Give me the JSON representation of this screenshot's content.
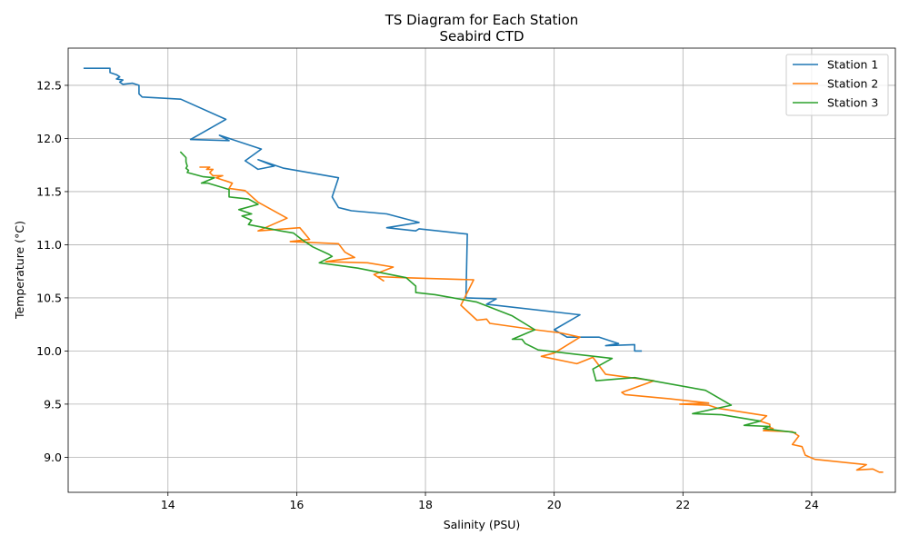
{
  "chart_data": {
    "type": "line",
    "title": "TS Diagram for Each Station",
    "subtitle": "Seabird CTD",
    "xlabel": "Salinity (PSU)",
    "ylabel": "Temperature (°C)",
    "xlim": [
      12.45,
      25.3
    ],
    "ylim": [
      8.67,
      12.85
    ],
    "xticks": [
      14,
      16,
      18,
      20,
      22,
      24
    ],
    "yticks": [
      9.0,
      9.5,
      10.0,
      10.5,
      11.0,
      11.5,
      12.0,
      12.5
    ],
    "grid": true,
    "legend_position": "top-right",
    "series": [
      {
        "name": "Station 1",
        "color": "#1f77b4",
        "points": [
          [
            12.7,
            12.66
          ],
          [
            13.1,
            12.66
          ],
          [
            13.1,
            12.62
          ],
          [
            13.2,
            12.6
          ],
          [
            13.25,
            12.58
          ],
          [
            13.2,
            12.56
          ],
          [
            13.3,
            12.55
          ],
          [
            13.25,
            12.53
          ],
          [
            13.3,
            12.51
          ],
          [
            13.45,
            12.52
          ],
          [
            13.55,
            12.5
          ],
          [
            13.55,
            12.42
          ],
          [
            13.6,
            12.39
          ],
          [
            14.2,
            12.37
          ],
          [
            14.9,
            12.18
          ],
          [
            14.35,
            11.99
          ],
          [
            14.95,
            11.98
          ],
          [
            14.8,
            12.03
          ],
          [
            15.45,
            11.9
          ],
          [
            15.2,
            11.79
          ],
          [
            15.4,
            11.71
          ],
          [
            15.65,
            11.74
          ],
          [
            15.4,
            11.8
          ],
          [
            15.8,
            11.72
          ],
          [
            16.65,
            11.63
          ],
          [
            16.55,
            11.45
          ],
          [
            16.65,
            11.35
          ],
          [
            16.85,
            11.32
          ],
          [
            17.4,
            11.29
          ],
          [
            17.9,
            11.21
          ],
          [
            17.4,
            11.16
          ],
          [
            17.85,
            11.13
          ],
          [
            17.9,
            11.15
          ],
          [
            18.65,
            11.1
          ],
          [
            18.63,
            10.5
          ],
          [
            19.1,
            10.49
          ],
          [
            18.95,
            10.44
          ],
          [
            20.4,
            10.34
          ],
          [
            20.0,
            10.2
          ],
          [
            20.2,
            10.13
          ],
          [
            20.7,
            10.13
          ],
          [
            21.0,
            10.07
          ],
          [
            20.8,
            10.05
          ],
          [
            21.25,
            10.06
          ],
          [
            21.25,
            10.0
          ],
          [
            21.35,
            10.0
          ]
        ]
      },
      {
        "name": "Station 2",
        "color": "#ff7f0e",
        "points": [
          [
            14.5,
            11.73
          ],
          [
            14.65,
            11.73
          ],
          [
            14.6,
            11.71
          ],
          [
            14.7,
            11.71
          ],
          [
            14.65,
            11.68
          ],
          [
            14.7,
            11.65
          ],
          [
            14.85,
            11.65
          ],
          [
            14.75,
            11.63
          ],
          [
            14.85,
            11.61
          ],
          [
            14.9,
            11.6
          ],
          [
            15.0,
            11.58
          ],
          [
            14.95,
            11.53
          ],
          [
            15.2,
            11.51
          ],
          [
            15.4,
            11.4
          ],
          [
            15.85,
            11.25
          ],
          [
            15.4,
            11.13
          ],
          [
            16.05,
            11.16
          ],
          [
            16.2,
            11.05
          ],
          [
            15.9,
            11.03
          ],
          [
            16.65,
            11.01
          ],
          [
            16.75,
            10.93
          ],
          [
            16.9,
            10.88
          ],
          [
            16.45,
            10.84
          ],
          [
            17.1,
            10.83
          ],
          [
            17.5,
            10.79
          ],
          [
            17.2,
            10.72
          ],
          [
            17.35,
            10.66
          ],
          [
            17.25,
            10.7
          ],
          [
            17.65,
            10.69
          ],
          [
            18.75,
            10.67
          ],
          [
            18.55,
            10.43
          ],
          [
            18.8,
            10.29
          ],
          [
            18.95,
            10.3
          ],
          [
            19.0,
            10.26
          ],
          [
            19.7,
            10.2
          ],
          [
            20.1,
            10.17
          ],
          [
            20.4,
            10.13
          ],
          [
            20.0,
            9.98
          ],
          [
            19.8,
            9.95
          ],
          [
            20.35,
            9.88
          ],
          [
            20.6,
            9.94
          ],
          [
            20.8,
            9.78
          ],
          [
            21.55,
            9.72
          ],
          [
            21.05,
            9.61
          ],
          [
            21.1,
            9.59
          ],
          [
            21.8,
            9.55
          ],
          [
            22.4,
            9.51
          ],
          [
            21.95,
            9.5
          ],
          [
            22.4,
            9.49
          ],
          [
            22.55,
            9.46
          ],
          [
            23.3,
            9.39
          ],
          [
            23.2,
            9.34
          ],
          [
            23.35,
            9.31
          ],
          [
            23.35,
            9.28
          ],
          [
            23.4,
            9.27
          ],
          [
            23.25,
            9.25
          ],
          [
            23.7,
            9.24
          ],
          [
            23.8,
            9.2
          ],
          [
            23.7,
            9.12
          ],
          [
            23.85,
            9.1
          ],
          [
            23.9,
            9.02
          ],
          [
            24.05,
            8.98
          ],
          [
            24.85,
            8.93
          ],
          [
            24.7,
            8.88
          ],
          [
            24.95,
            8.89
          ],
          [
            25.05,
            8.86
          ],
          [
            25.1,
            8.86
          ]
        ]
      },
      {
        "name": "Station 3",
        "color": "#2ca02c",
        "points": [
          [
            14.2,
            11.87
          ],
          [
            14.28,
            11.82
          ],
          [
            14.28,
            11.78
          ],
          [
            14.3,
            11.74
          ],
          [
            14.28,
            11.72
          ],
          [
            14.32,
            11.7
          ],
          [
            14.3,
            11.68
          ],
          [
            14.55,
            11.64
          ],
          [
            14.72,
            11.63
          ],
          [
            14.52,
            11.58
          ],
          [
            14.62,
            11.58
          ],
          [
            14.95,
            11.52
          ],
          [
            14.95,
            11.45
          ],
          [
            15.25,
            11.43
          ],
          [
            15.4,
            11.38
          ],
          [
            15.1,
            11.33
          ],
          [
            15.3,
            11.29
          ],
          [
            15.15,
            11.27
          ],
          [
            15.3,
            11.23
          ],
          [
            15.25,
            11.19
          ],
          [
            15.75,
            11.13
          ],
          [
            15.95,
            11.11
          ],
          [
            16.1,
            11.04
          ],
          [
            16.25,
            10.98
          ],
          [
            16.5,
            10.91
          ],
          [
            16.55,
            10.89
          ],
          [
            16.35,
            10.83
          ],
          [
            16.95,
            10.78
          ],
          [
            17.7,
            10.69
          ],
          [
            17.85,
            10.61
          ],
          [
            17.85,
            10.55
          ],
          [
            18.15,
            10.53
          ],
          [
            18.8,
            10.46
          ],
          [
            19.35,
            10.33
          ],
          [
            19.7,
            10.2
          ],
          [
            19.35,
            10.11
          ],
          [
            19.5,
            10.11
          ],
          [
            19.55,
            10.07
          ],
          [
            19.75,
            10.01
          ],
          [
            20.9,
            9.93
          ],
          [
            20.6,
            9.83
          ],
          [
            20.65,
            9.72
          ],
          [
            21.05,
            9.74
          ],
          [
            21.25,
            9.75
          ],
          [
            22.35,
            9.63
          ],
          [
            22.75,
            9.49
          ],
          [
            22.15,
            9.41
          ],
          [
            22.6,
            9.4
          ],
          [
            23.2,
            9.34
          ],
          [
            22.95,
            9.3
          ],
          [
            23.35,
            9.29
          ],
          [
            23.25,
            9.27
          ],
          [
            23.5,
            9.25
          ],
          [
            23.65,
            9.24
          ],
          [
            23.75,
            9.23
          ]
        ]
      }
    ]
  }
}
